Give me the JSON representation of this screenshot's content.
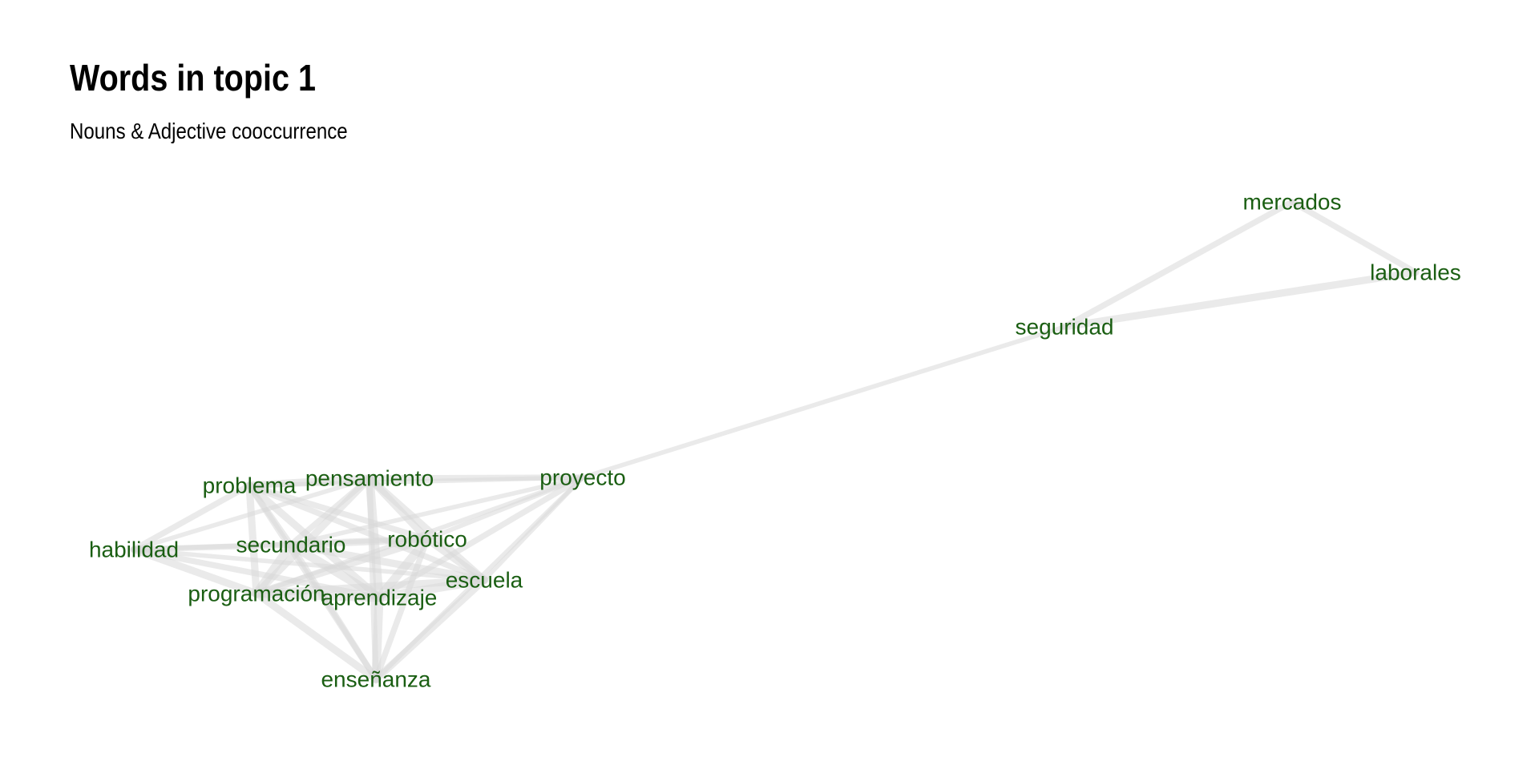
{
  "title": "Words in topic 1",
  "subtitle": "Nouns & Adjective cooccurrence",
  "colors": {
    "label": "#1a5e12",
    "edge": "#d9d9d9",
    "background": "#ffffff"
  },
  "nodes": [
    {
      "id": "mercados",
      "label": "mercados"
    },
    {
      "id": "laborales",
      "label": "laborales"
    },
    {
      "id": "seguridad",
      "label": "seguridad"
    },
    {
      "id": "proyecto",
      "label": "proyecto"
    },
    {
      "id": "problema",
      "label": "problema"
    },
    {
      "id": "pensamiento",
      "label": "pensamiento"
    },
    {
      "id": "habilidad",
      "label": "habilidad"
    },
    {
      "id": "secundario",
      "label": "secundario"
    },
    {
      "id": "robotico",
      "label": "robótico"
    },
    {
      "id": "escuela",
      "label": "escuela"
    },
    {
      "id": "programacion",
      "label": "programación"
    },
    {
      "id": "aprendizaje",
      "label": "aprendizaje"
    },
    {
      "id": "ensenanza",
      "label": "enseñanza"
    }
  ],
  "edges": [
    {
      "source": "mercados",
      "target": "laborales",
      "weight": 3
    },
    {
      "source": "mercados",
      "target": "seguridad",
      "weight": 3
    },
    {
      "source": "laborales",
      "target": "seguridad",
      "weight": 4
    },
    {
      "source": "seguridad",
      "target": "proyecto",
      "weight": 2
    },
    {
      "source": "proyecto",
      "target": "pensamiento",
      "weight": 3
    },
    {
      "source": "proyecto",
      "target": "problema",
      "weight": 2
    },
    {
      "source": "proyecto",
      "target": "robotico",
      "weight": 2
    },
    {
      "source": "proyecto",
      "target": "escuela",
      "weight": 2
    },
    {
      "source": "proyecto",
      "target": "aprendizaje",
      "weight": 3
    },
    {
      "source": "proyecto",
      "target": "secundario",
      "weight": 2
    },
    {
      "source": "proyecto",
      "target": "programacion",
      "weight": 2
    },
    {
      "source": "proyecto",
      "target": "ensenanza",
      "weight": 2
    },
    {
      "source": "problema",
      "target": "pensamiento",
      "weight": 4
    },
    {
      "source": "problema",
      "target": "habilidad",
      "weight": 3
    },
    {
      "source": "problema",
      "target": "secundario",
      "weight": 3
    },
    {
      "source": "problema",
      "target": "robotico",
      "weight": 3
    },
    {
      "source": "problema",
      "target": "escuela",
      "weight": 3
    },
    {
      "source": "problema",
      "target": "programacion",
      "weight": 4
    },
    {
      "source": "problema",
      "target": "aprendizaje",
      "weight": 4
    },
    {
      "source": "problema",
      "target": "ensenanza",
      "weight": 3
    },
    {
      "source": "pensamiento",
      "target": "habilidad",
      "weight": 2
    },
    {
      "source": "pensamiento",
      "target": "secundario",
      "weight": 3
    },
    {
      "source": "pensamiento",
      "target": "robotico",
      "weight": 4
    },
    {
      "source": "pensamiento",
      "target": "escuela",
      "weight": 4
    },
    {
      "source": "pensamiento",
      "target": "programacion",
      "weight": 4
    },
    {
      "source": "pensamiento",
      "target": "aprendizaje",
      "weight": 5
    },
    {
      "source": "pensamiento",
      "target": "ensenanza",
      "weight": 3
    },
    {
      "source": "habilidad",
      "target": "secundario",
      "weight": 3
    },
    {
      "source": "habilidad",
      "target": "robotico",
      "weight": 2
    },
    {
      "source": "habilidad",
      "target": "escuela",
      "weight": 2
    },
    {
      "source": "habilidad",
      "target": "programacion",
      "weight": 4
    },
    {
      "source": "habilidad",
      "target": "aprendizaje",
      "weight": 3
    },
    {
      "source": "secundario",
      "target": "robotico",
      "weight": 4
    },
    {
      "source": "secundario",
      "target": "escuela",
      "weight": 4
    },
    {
      "source": "secundario",
      "target": "programacion",
      "weight": 5
    },
    {
      "source": "secundario",
      "target": "aprendizaje",
      "weight": 5
    },
    {
      "source": "secundario",
      "target": "ensenanza",
      "weight": 3
    },
    {
      "source": "robotico",
      "target": "escuela",
      "weight": 4
    },
    {
      "source": "robotico",
      "target": "programacion",
      "weight": 4
    },
    {
      "source": "robotico",
      "target": "aprendizaje",
      "weight": 5
    },
    {
      "source": "robotico",
      "target": "ensenanza",
      "weight": 3
    },
    {
      "source": "escuela",
      "target": "programacion",
      "weight": 4
    },
    {
      "source": "escuela",
      "target": "aprendizaje",
      "weight": 5
    },
    {
      "source": "escuela",
      "target": "ensenanza",
      "weight": 4
    },
    {
      "source": "programacion",
      "target": "aprendizaje",
      "weight": 5
    },
    {
      "source": "programacion",
      "target": "ensenanza",
      "weight": 4
    },
    {
      "source": "aprendizaje",
      "target": "ensenanza",
      "weight": 5
    }
  ]
}
